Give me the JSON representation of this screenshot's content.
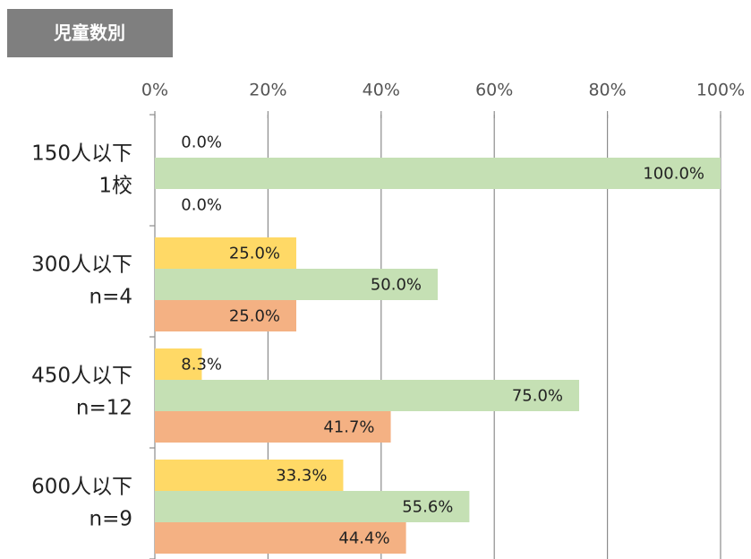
{
  "chart_data": {
    "type": "bar",
    "orientation": "horizontal",
    "title": "児童数別",
    "categories": [
      [
        "150人以下",
        "1校"
      ],
      [
        "300人以下",
        "n=4"
      ],
      [
        "450人以下",
        "n=12"
      ],
      [
        "600人以下",
        "n=9"
      ]
    ],
    "series": [
      {
        "color": "#ffd966",
        "values": [
          0,
          25,
          8.3,
          33.3
        ],
        "value_labels": [
          "0.0%",
          "25.0%",
          "8.3%",
          "33.3%"
        ]
      },
      {
        "color": "#c5e0b4",
        "values": [
          100,
          50,
          75,
          55.6
        ],
        "value_labels": [
          "100.0%",
          "50.0%",
          "75.0%",
          "55.6%"
        ]
      },
      {
        "color": "#f4b183",
        "values": [
          0,
          25,
          41.7,
          44.4
        ],
        "value_labels": [
          "0.0%",
          "25.0%",
          "41.7%",
          "44.4%"
        ]
      }
    ],
    "xlim": [
      0,
      100
    ],
    "xticks": [
      {
        "value": 0,
        "label": "0%"
      },
      {
        "value": 20,
        "label": "20%"
      },
      {
        "value": 40,
        "label": "40%"
      },
      {
        "value": 60,
        "label": "60%"
      },
      {
        "value": 80,
        "label": "80%"
      },
      {
        "value": 100,
        "label": "100%"
      }
    ],
    "grid": true
  }
}
